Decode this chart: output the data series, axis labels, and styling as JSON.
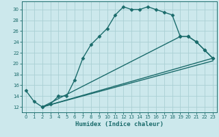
{
  "xlabel": "Humidex (Indice chaleur)",
  "bg_color": "#cce8ec",
  "line_color": "#1a6b6b",
  "grid_color": "#aacfd4",
  "xlim": [
    -0.5,
    23.5
  ],
  "ylim": [
    11,
    31.5
  ],
  "xticks": [
    0,
    1,
    2,
    3,
    4,
    5,
    6,
    7,
    8,
    9,
    10,
    11,
    12,
    13,
    14,
    15,
    16,
    17,
    18,
    19,
    20,
    21,
    22,
    23
  ],
  "yticks": [
    12,
    14,
    16,
    18,
    20,
    22,
    24,
    26,
    28,
    30
  ],
  "curve1_x": [
    0,
    1,
    2,
    3,
    4,
    5,
    6,
    7,
    8,
    9,
    10,
    11,
    12,
    13,
    14,
    15,
    16,
    17,
    18,
    19,
    20,
    21,
    22,
    23
  ],
  "curve1_y": [
    15,
    13,
    12,
    12.5,
    14,
    14,
    17,
    21,
    23.5,
    25,
    26.5,
    29,
    30.5,
    30,
    30,
    30.5,
    30,
    29.5,
    29,
    25,
    25,
    24,
    22.5,
    21
  ],
  "curve2_x": [
    2,
    19,
    20,
    21,
    22,
    23
  ],
  "curve2_y": [
    12,
    25,
    25,
    24,
    22.5,
    21
  ],
  "curve3_x": [
    2,
    23
  ],
  "curve3_y": [
    12,
    21
  ],
  "curve4_x": [
    2,
    23
  ],
  "curve4_y": [
    12,
    20.5
  ],
  "marker": "D",
  "markersize": 2.5,
  "linewidth": 1.0
}
